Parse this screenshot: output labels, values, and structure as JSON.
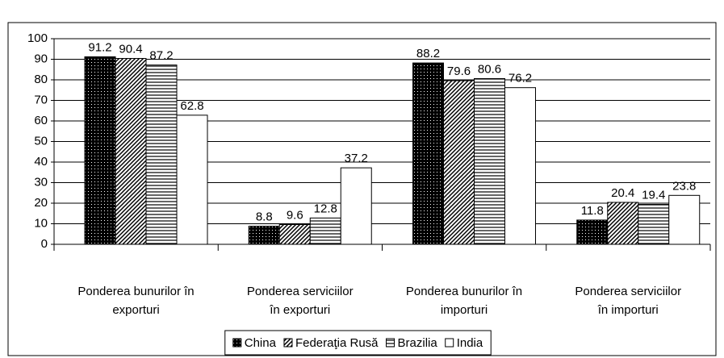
{
  "chart_data": {
    "type": "bar",
    "categories": [
      "Ponderea bunurilor în\nexporturi",
      "Ponderea serviciilor\nîn exporturi",
      "Ponderea bunurilor în\nimporturi",
      "Ponderea serviciilor\nîn importuri"
    ],
    "series": [
      {
        "name": "China",
        "color": "#000000",
        "pattern": "dots",
        "values": [
          91.2,
          8.8,
          88.2,
          11.8
        ]
      },
      {
        "name": "Federaţia Rusă",
        "color": "#000000",
        "pattern": "diagonal",
        "values": [
          90.4,
          9.6,
          79.6,
          20.4
        ]
      },
      {
        "name": "Brazilia",
        "color": "#000000",
        "pattern": "horizontal",
        "values": [
          87.2,
          12.8,
          80.6,
          19.4
        ]
      },
      {
        "name": "India",
        "color": "#000000",
        "pattern": "none",
        "values": [
          62.8,
          37.2,
          76.2,
          23.8
        ]
      }
    ],
    "ylim": [
      0,
      100
    ],
    "yticks": [
      0,
      10,
      20,
      30,
      40,
      50,
      60,
      70,
      80,
      90,
      100
    ],
    "grid": true,
    "legend": "bottom"
  }
}
